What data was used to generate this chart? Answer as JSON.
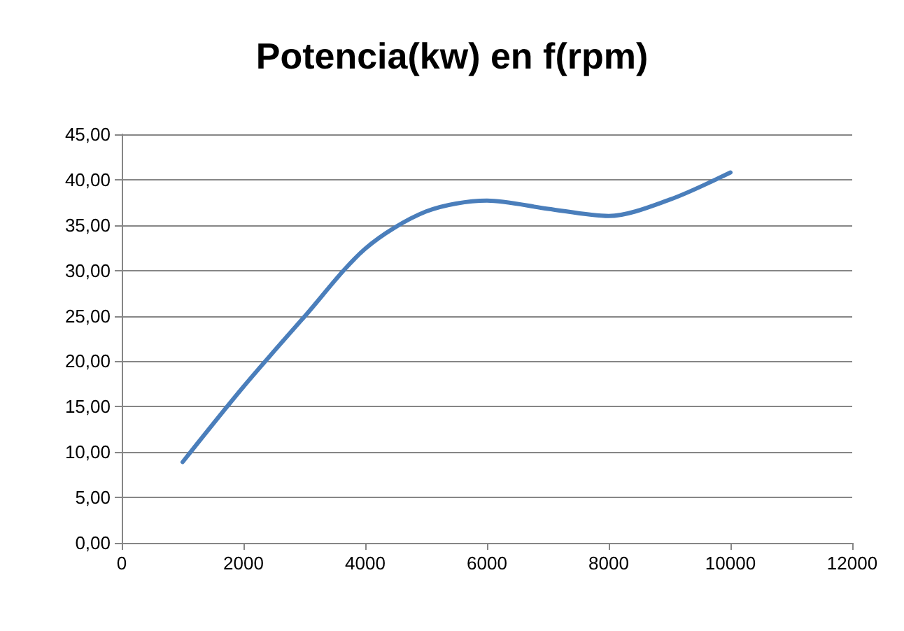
{
  "chart_data": {
    "type": "line",
    "title": "Potencia(kw) en f(rpm)",
    "x": [
      1000,
      2000,
      3000,
      4000,
      5000,
      6000,
      7000,
      8000,
      9000,
      10000
    ],
    "series": [
      {
        "color": "#4a7ebb",
        "values": [
          8.9,
          17.2,
          24.9,
          32.4,
          36.5,
          37.7,
          36.8,
          36.0,
          37.8,
          40.8
        ]
      }
    ],
    "xlim": [
      0,
      12000
    ],
    "xticks": [
      0,
      2000,
      4000,
      6000,
      8000,
      10000,
      12000
    ],
    "ylim": [
      0,
      45
    ],
    "yticks": [
      {
        "value": 0,
        "label": "0,00"
      },
      {
        "value": 5,
        "label": "5,00"
      },
      {
        "value": 10,
        "label": "10,00"
      },
      {
        "value": 15,
        "label": "15,00"
      },
      {
        "value": 20,
        "label": "20,00"
      },
      {
        "value": 25,
        "label": "25,00"
      },
      {
        "value": 30,
        "label": "30,00"
      },
      {
        "value": 35,
        "label": "35,00"
      },
      {
        "value": 40,
        "label": "40,00"
      },
      {
        "value": 45,
        "label": "45,00"
      }
    ],
    "grid": "y",
    "marker": "none",
    "line_style": "solid"
  }
}
